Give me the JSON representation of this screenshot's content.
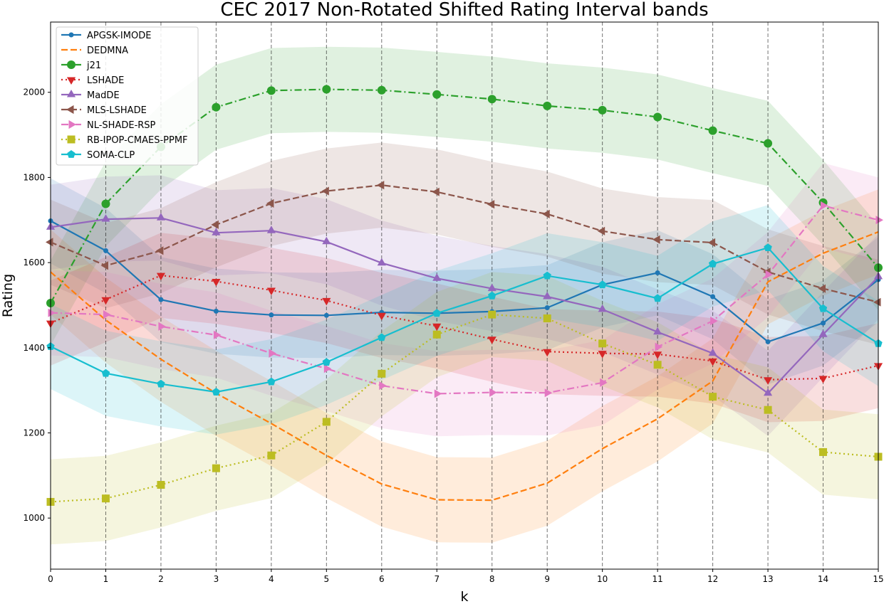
{
  "chart_data": {
    "type": "line",
    "title": "CEC 2017 Non-Rotated Shifted Rating Interval bands",
    "xlabel": "k",
    "ylabel": "Rating",
    "x": [
      0,
      1,
      2,
      3,
      4,
      5,
      6,
      7,
      8,
      9,
      10,
      11,
      12,
      13,
      14,
      15
    ],
    "xlim": [
      0,
      15
    ],
    "ylim": [
      880,
      2165
    ],
    "yticks": [
      1000,
      1200,
      1400,
      1600,
      1800,
      2000
    ],
    "grid": "vertical dashed lines at each k",
    "legend_position": "upper-left",
    "band_halfwidth": 100,
    "series": [
      {
        "name": "APGSK-IMODE",
        "color": "#1f77b4",
        "linestyle": "solid",
        "marker": "point",
        "values": [
          1698,
          1628,
          1513,
          1486,
          1477,
          1476,
          1483,
          1481,
          1485,
          1494,
          1548,
          1576,
          1520,
          1414,
          1458,
          1560
        ]
      },
      {
        "name": "DEDMNA",
        "color": "#ff7f0e",
        "linestyle": "dashed",
        "marker": "none",
        "values": [
          1578,
          1465,
          1373,
          1293,
          1222,
          1147,
          1080,
          1043,
          1042,
          1082,
          1163,
          1233,
          1322,
          1555,
          1622,
          1672
        ]
      },
      {
        "name": "j21",
        "color": "#2ca02c",
        "linestyle": "dashdot",
        "marker": "circle",
        "values": [
          1505,
          1738,
          1872,
          1965,
          2004,
          2007,
          2005,
          1995,
          1984,
          1968,
          1958,
          1942,
          1910,
          1880,
          1741,
          1588
        ]
      },
      {
        "name": "LSHADE",
        "color": "#d62728",
        "linestyle": "dotted",
        "marker": "triangle-down",
        "values": [
          1458,
          1513,
          1570,
          1556,
          1535,
          1511,
          1476,
          1451,
          1420,
          1391,
          1387,
          1385,
          1369,
          1325,
          1328,
          1358
        ]
      },
      {
        "name": "MadDE",
        "color": "#9467bd",
        "linestyle": "solid",
        "marker": "triangle-up",
        "values": [
          1683,
          1702,
          1705,
          1670,
          1675,
          1649,
          1599,
          1563,
          1539,
          1520,
          1490,
          1437,
          1387,
          1293,
          1431,
          1567
        ]
      },
      {
        "name": "MLS-LSHADE",
        "color": "#8c564b",
        "linestyle": "dashed",
        "marker": "triangle-left",
        "values": [
          1648,
          1593,
          1628,
          1689,
          1739,
          1768,
          1782,
          1766,
          1737,
          1714,
          1674,
          1654,
          1647,
          1578,
          1539,
          1507
        ]
      },
      {
        "name": "NL-SHADE-RSP",
        "color": "#e377c2",
        "linestyle": "dashdot",
        "marker": "triangle-right",
        "values": [
          1482,
          1478,
          1450,
          1430,
          1387,
          1351,
          1311,
          1292,
          1295,
          1294,
          1318,
          1402,
          1463,
          1572,
          1734,
          1700
        ]
      },
      {
        "name": "RB-IPOP-CMAES-PPMF",
        "color": "#bcbd22",
        "linestyle": "dotted",
        "marker": "square",
        "values": [
          1038,
          1046,
          1078,
          1117,
          1147,
          1226,
          1339,
          1431,
          1478,
          1469,
          1410,
          1360,
          1285,
          1254,
          1155,
          1144
        ]
      },
      {
        "name": "SOMA-CLP",
        "color": "#17becf",
        "linestyle": "solid",
        "marker": "pentagon",
        "values": [
          1403,
          1340,
          1315,
          1296,
          1320,
          1366,
          1424,
          1481,
          1522,
          1569,
          1548,
          1516,
          1597,
          1635,
          1492,
          1410
        ]
      }
    ]
  }
}
